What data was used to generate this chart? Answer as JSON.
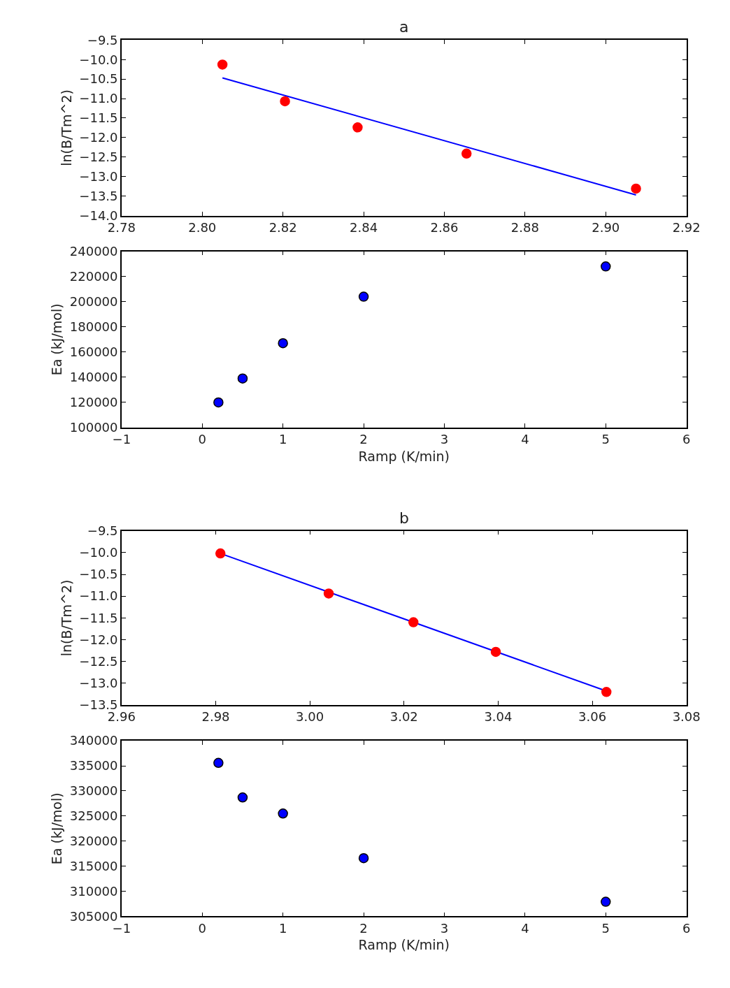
{
  "chart_data": [
    {
      "type": "scatter",
      "title": "a",
      "ylabel": "ln(B/Tm^2)",
      "marker": "circle",
      "xlim": [
        2.78,
        2.92
      ],
      "xticks": [
        {
          "value": 2.78,
          "label": "2.78"
        },
        {
          "value": 2.8,
          "label": "2.80"
        },
        {
          "value": 2.82,
          "label": "2.82"
        },
        {
          "value": 2.84,
          "label": "2.84"
        },
        {
          "value": 2.86,
          "label": "2.86"
        },
        {
          "value": 2.88,
          "label": "2.88"
        },
        {
          "value": 2.9,
          "label": "2.90"
        },
        {
          "value": 2.92,
          "label": "2.92"
        }
      ],
      "ylim": [
        -14.0,
        -9.5
      ],
      "yticks": [
        {
          "value": -14.0,
          "label": "−14.0"
        },
        {
          "value": -13.5,
          "label": "−13.5"
        },
        {
          "value": -13.0,
          "label": "−13.0"
        },
        {
          "value": -12.5,
          "label": "−12.5"
        },
        {
          "value": -12.0,
          "label": "−12.0"
        },
        {
          "value": -11.5,
          "label": "−11.5"
        },
        {
          "value": -11.0,
          "label": "−11.0"
        },
        {
          "value": -10.5,
          "label": "−10.5"
        },
        {
          "value": -10.0,
          "label": "−10.0"
        },
        {
          "value": -9.5,
          "label": "−9.5"
        }
      ],
      "series": [
        {
          "type": "line",
          "marker": "none",
          "color": "#0000ff",
          "x": [
            2.805,
            2.9075
          ],
          "values": [
            -10.47,
            -13.47
          ]
        },
        {
          "color": "#ff0000",
          "x": [
            2.805,
            2.8205,
            2.8385,
            2.8655,
            2.9075
          ],
          "values": [
            -10.13,
            -11.07,
            -11.74,
            -12.41,
            -13.31
          ]
        }
      ]
    },
    {
      "type": "scatter",
      "xlabel": "Ramp (K/min)",
      "ylabel": "Ea (kJ/mol)",
      "marker": "circle",
      "xlim": [
        -1,
        6
      ],
      "xticks": [
        {
          "value": -1,
          "label": "−1"
        },
        0,
        1,
        2,
        3,
        4,
        5,
        6
      ],
      "ylim": [
        100000,
        240000
      ],
      "yticks": [
        100000,
        120000,
        140000,
        160000,
        180000,
        200000,
        220000,
        240000
      ],
      "series": [
        {
          "color": "#0000ff",
          "x": [
            0.2,
            0.5,
            1,
            2,
            5
          ],
          "values": [
            120000,
            139000,
            167000,
            204000,
            228000
          ]
        }
      ]
    },
    {
      "type": "scatter",
      "title": "b",
      "ylabel": "ln(B/Tm^2)",
      "marker": "circle",
      "xlim": [
        2.96,
        3.08
      ],
      "xticks": [
        {
          "value": 2.96,
          "label": "2.96"
        },
        {
          "value": 2.98,
          "label": "2.98"
        },
        {
          "value": 3.0,
          "label": "3.00"
        },
        {
          "value": 3.02,
          "label": "3.02"
        },
        {
          "value": 3.04,
          "label": "3.04"
        },
        {
          "value": 3.06,
          "label": "3.06"
        },
        {
          "value": 3.08,
          "label": "3.08"
        }
      ],
      "ylim": [
        -13.5,
        -9.5
      ],
      "yticks": [
        {
          "value": -13.5,
          "label": "−13.5"
        },
        {
          "value": -13.0,
          "label": "−13.0"
        },
        {
          "value": -12.5,
          "label": "−12.5"
        },
        {
          "value": -12.0,
          "label": "−12.0"
        },
        {
          "value": -11.5,
          "label": "−11.5"
        },
        {
          "value": -11.0,
          "label": "−11.0"
        },
        {
          "value": -10.5,
          "label": "−10.5"
        },
        {
          "value": -10.0,
          "label": "−10.0"
        },
        {
          "value": -9.5,
          "label": "−9.5"
        }
      ],
      "series": [
        {
          "type": "line",
          "marker": "none",
          "color": "#0000ff",
          "x": [
            2.981,
            3.063
          ],
          "values": [
            -10.02,
            -13.18
          ]
        },
        {
          "color": "#ff0000",
          "x": [
            2.981,
            3.004,
            3.022,
            3.0395,
            3.063
          ],
          "values": [
            -10.02,
            -10.94,
            -11.6,
            -12.28,
            -13.2
          ]
        }
      ]
    },
    {
      "type": "scatter",
      "xlabel": "Ramp (K/min)",
      "ylabel": "Ea (kJ/mol)",
      "marker": "circle",
      "xlim": [
        -1,
        6
      ],
      "xticks": [
        {
          "value": -1,
          "label": "−1"
        },
        0,
        1,
        2,
        3,
        4,
        5,
        6
      ],
      "ylim": [
        305000,
        340000
      ],
      "yticks": [
        305000,
        310000,
        315000,
        320000,
        325000,
        330000,
        335000,
        340000
      ],
      "series": [
        {
          "color": "#0000ff",
          "x": [
            0.2,
            0.5,
            1,
            2,
            5
          ],
          "values": [
            335600,
            328700,
            325500,
            316600,
            307900
          ]
        }
      ]
    }
  ]
}
